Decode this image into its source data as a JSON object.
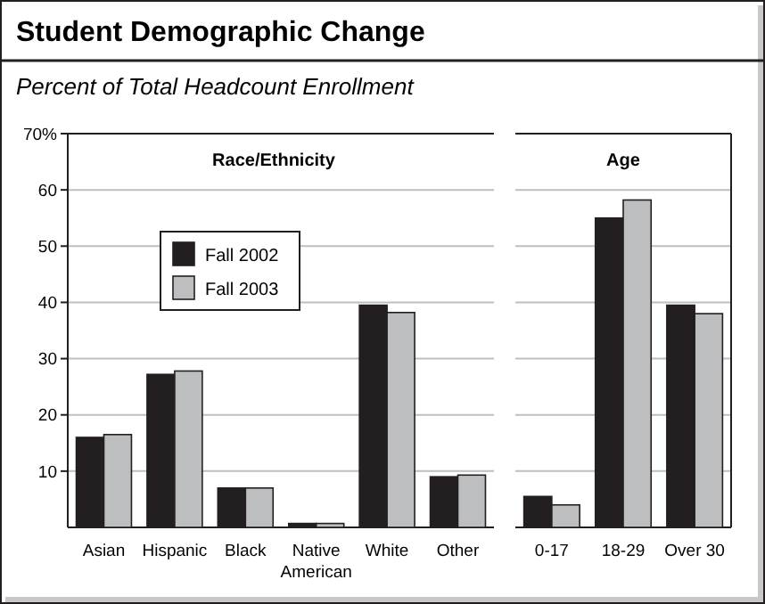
{
  "chart_data": [
    {
      "type": "bar",
      "title": "Student Demographic Change",
      "subtitle": "Percent of Total Headcount Enrollment",
      "annotations": [
        "Race/Ethnicity"
      ],
      "categories": [
        "Asian",
        "Hispanic",
        "Black",
        "Native American",
        "White",
        "Other"
      ],
      "series": [
        {
          "name": "Fall 2002",
          "color": "#231f20",
          "values": [
            16,
            27.2,
            7,
            0.7,
            39.5,
            9
          ]
        },
        {
          "name": "Fall 2003",
          "color": "#bcbec0",
          "values": [
            16.5,
            27.8,
            7,
            0.7,
            38.2,
            9.3
          ]
        }
      ],
      "ylim": [
        0,
        70
      ],
      "yticks": [
        10,
        20,
        30,
        40,
        50,
        60,
        {
          "value": 70,
          "label": "70%"
        }
      ],
      "grid": "y",
      "legend": "top left"
    },
    {
      "type": "bar",
      "title": "Age",
      "categories": [
        "0-17",
        "18-29",
        "Over 30"
      ],
      "series": [
        {
          "color": "#231f20",
          "values": [
            5.5,
            55,
            39.5
          ]
        },
        {
          "color": "#bcbec0",
          "values": [
            4,
            58.2,
            38
          ]
        }
      ],
      "ylim": [
        0,
        70
      ],
      "yticks": [
        10,
        20,
        30,
        40,
        50,
        60,
        70
      ],
      "grid": "y",
      "tick_labels": "x"
    }
  ]
}
